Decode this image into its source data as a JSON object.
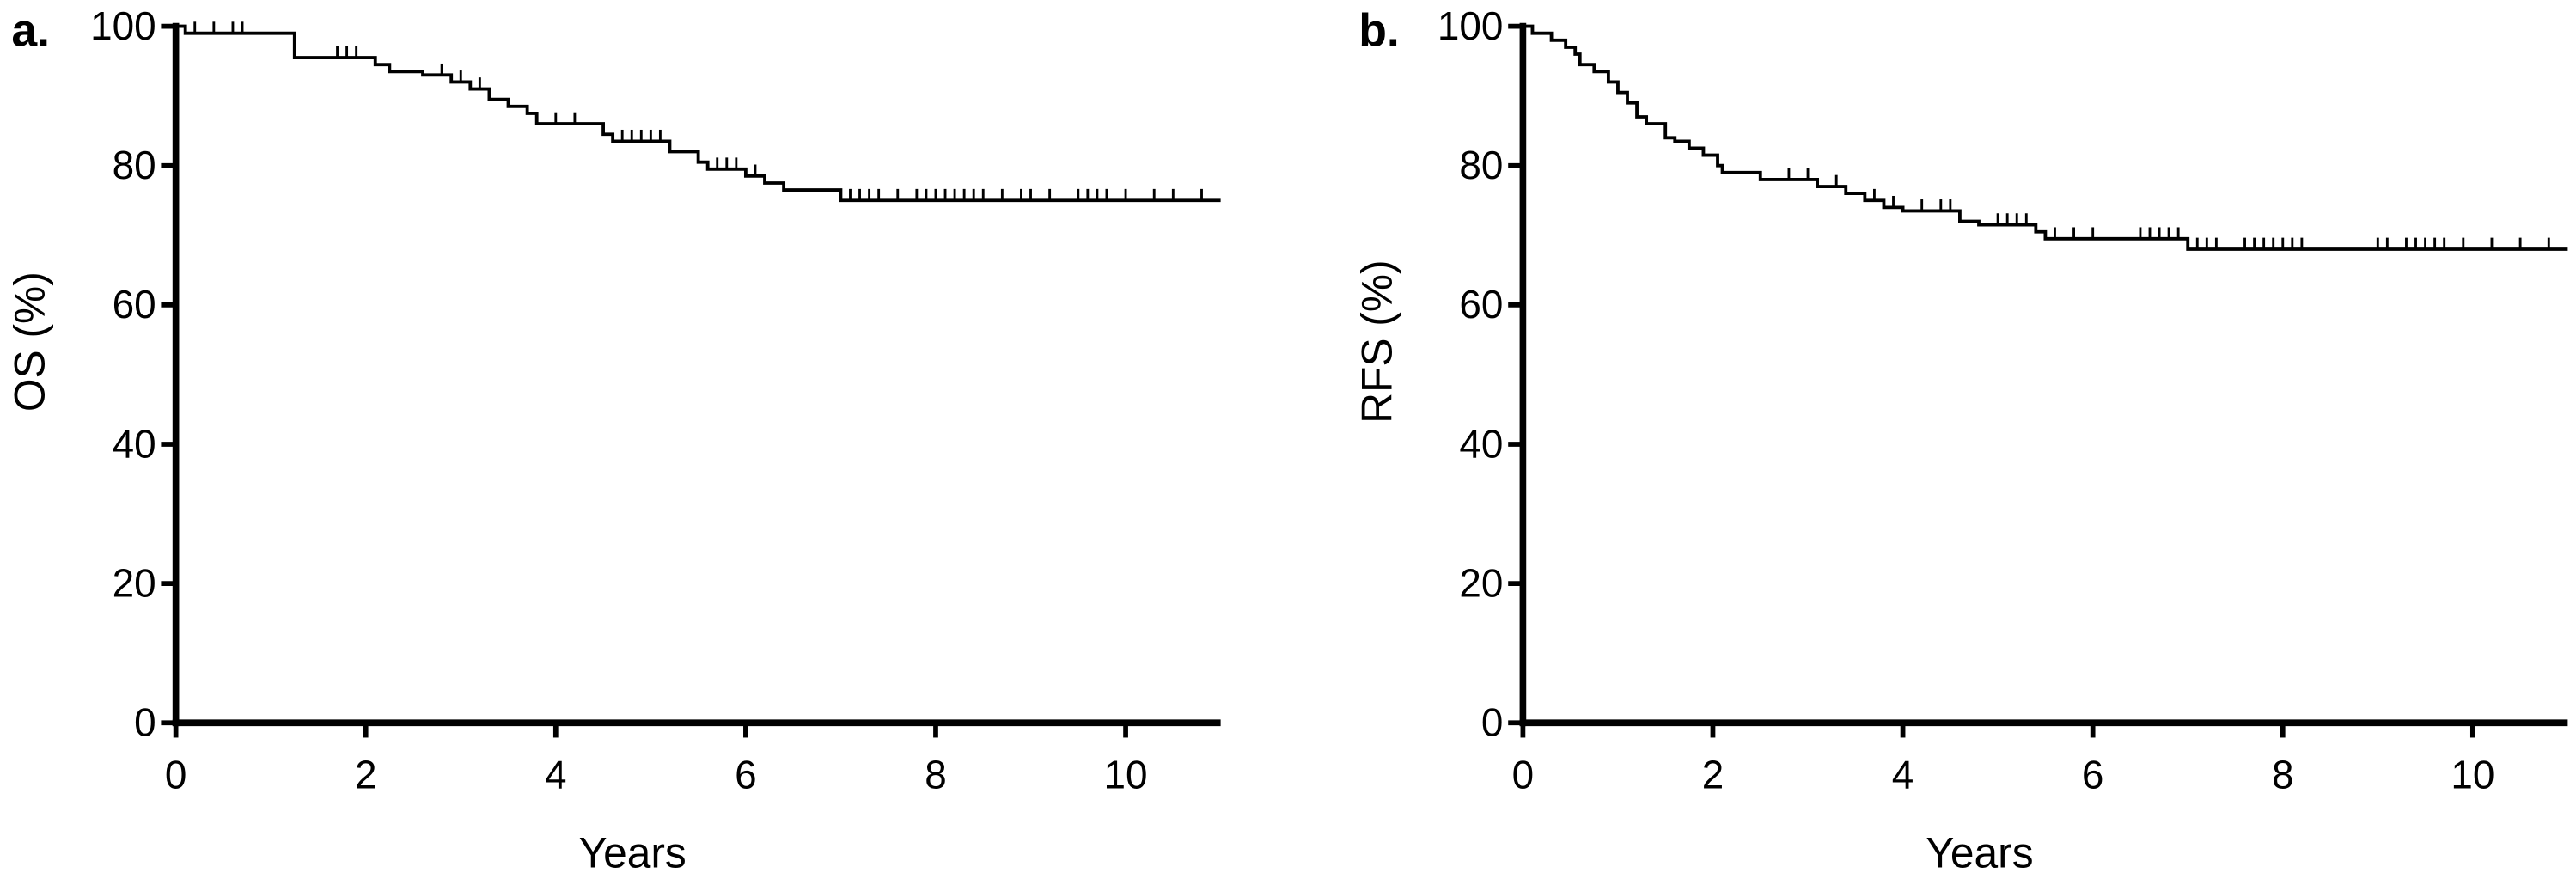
{
  "chart_data": [
    {
      "type": "step",
      "panel_label": "a.",
      "ylabel": "OS (%)",
      "xlabel": "Years",
      "color": "#000000",
      "x": [
        0,
        0.1,
        1.25,
        2.1,
        2.25,
        2.6,
        2.9,
        3.1,
        3.3,
        3.5,
        3.7,
        3.8,
        4.5,
        4.6,
        5.2,
        5.5,
        5.6,
        6.0,
        6.2,
        6.4,
        7.0,
        11
      ],
      "values": [
        100,
        99,
        95.5,
        94.5,
        93.5,
        93,
        92,
        91,
        89.5,
        88.5,
        87.5,
        86,
        84.5,
        83.5,
        82,
        80.5,
        79.5,
        78.5,
        77.5,
        76.5,
        75,
        75
      ],
      "censored_x": [
        0.2,
        0.4,
        0.6,
        0.7,
        1.7,
        1.8,
        1.9,
        2.8,
        3.0,
        3.2,
        4.0,
        4.2,
        4.7,
        4.8,
        4.9,
        5.0,
        5.1,
        5.7,
        5.8,
        5.9,
        6.1,
        7.1,
        7.2,
        7.3,
        7.4,
        7.6,
        7.8,
        7.9,
        8.0,
        8.1,
        8.2,
        8.3,
        8.4,
        8.5,
        8.7,
        8.9,
        9.0,
        9.2,
        9.5,
        9.6,
        9.7,
        9.8,
        10.0,
        10.3,
        10.5,
        10.8
      ],
      "xlim": [
        0,
        11
      ],
      "xticks": [
        0,
        2,
        4,
        6,
        8,
        10
      ],
      "ylim": [
        0,
        100
      ],
      "yticks": [
        0,
        20,
        40,
        60,
        80,
        100
      ]
    },
    {
      "type": "step",
      "panel_label": "b.",
      "ylabel": "RFS (%)",
      "xlabel": "Years",
      "color": "#000000",
      "x": [
        0,
        0.1,
        0.3,
        0.45,
        0.55,
        0.6,
        0.75,
        0.9,
        1.0,
        1.1,
        1.2,
        1.3,
        1.5,
        1.6,
        1.75,
        1.9,
        2.05,
        2.1,
        2.5,
        3.1,
        3.4,
        3.6,
        3.8,
        4.0,
        4.6,
        4.8,
        5.4,
        5.5,
        7.0,
        11
      ],
      "values": [
        100,
        99,
        98,
        97,
        96,
        94.5,
        93.5,
        92,
        90.5,
        89,
        87,
        86,
        84,
        83.5,
        82.5,
        81.5,
        80,
        79,
        78,
        77,
        76,
        75,
        74,
        73.5,
        72,
        71.5,
        70.5,
        69.5,
        68,
        68
      ],
      "censored_x": [
        2.8,
        3.0,
        3.3,
        3.7,
        3.9,
        4.2,
        4.4,
        4.5,
        5.0,
        5.1,
        5.2,
        5.3,
        5.6,
        5.8,
        6.0,
        6.5,
        6.6,
        6.7,
        6.8,
        6.9,
        7.1,
        7.2,
        7.3,
        7.6,
        7.7,
        7.8,
        7.9,
        8.0,
        8.1,
        8.2,
        9.0,
        9.1,
        9.3,
        9.4,
        9.5,
        9.6,
        9.7,
        9.9,
        10.2,
        10.5,
        10.8
      ],
      "xlim": [
        0,
        11
      ],
      "xticks": [
        0,
        2,
        4,
        6,
        8,
        10
      ],
      "ylim": [
        0,
        100
      ],
      "yticks": [
        0,
        20,
        40,
        60,
        80,
        100
      ]
    }
  ]
}
